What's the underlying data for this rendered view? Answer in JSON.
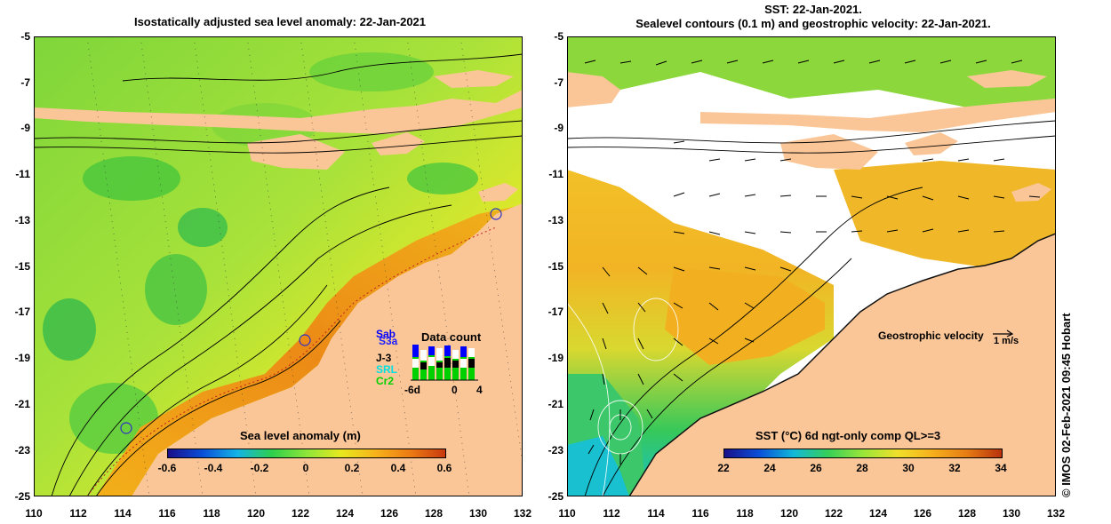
{
  "left_panel": {
    "title": "Isostatically adjusted sea level anomaly: 22-Jan-2021",
    "y_ticks": [
      "-5",
      "-7",
      "-9",
      "-11",
      "-13",
      "-15",
      "-17",
      "-19",
      "-21",
      "-23",
      "-25"
    ],
    "x_ticks": [
      "110",
      "112",
      "114",
      "116",
      "118",
      "120",
      "122",
      "124",
      "126",
      "128",
      "130",
      "132"
    ],
    "colorbar": {
      "title": "Sea level anomaly (m)",
      "ticks": [
        "-0.6",
        "-0.4",
        "-0.2",
        "0",
        "0.2",
        "0.4",
        "0.6"
      ]
    },
    "data_count": {
      "title": "Data count",
      "satellites": [
        "Sab",
        "S3a",
        "J-3",
        "SRL",
        "Cr2"
      ],
      "axis_labels": [
        "-6d",
        "0",
        "4"
      ],
      "sat_colors": [
        "#0000ff",
        "#2020ff",
        "#000000",
        "#00e0e0",
        "#00d000"
      ]
    }
  },
  "right_panel": {
    "title_line1": "SST: 22-Jan-2021.",
    "title_line2": "Sealevel contours (0.1 m) and geostrophic velocity: 22-Jan-2021.",
    "y_ticks": [
      "-5",
      "-7",
      "-9",
      "-11",
      "-13",
      "-15",
      "-17",
      "-19",
      "-21",
      "-23",
      "-25"
    ],
    "x_ticks": [
      "110",
      "112",
      "114",
      "116",
      "118",
      "120",
      "122",
      "124",
      "126",
      "128",
      "130",
      "132"
    ],
    "velocity_legend": "Geostrophic velocity",
    "velocity_unit": "1 m/s",
    "colorbar": {
      "title": "SST (°C) 6d ngt-only comp QL>=3",
      "ticks": [
        "22",
        "24",
        "26",
        "28",
        "30",
        "32",
        "34"
      ]
    }
  },
  "credit": "© IMOS 02-Feb-2021 09:45 Hobart",
  "colors": {
    "land": "#fbc697",
    "sla_scale": [
      "#1a0f8a",
      "#0a4fd8",
      "#14b4e6",
      "#2ecf4c",
      "#8ee63a",
      "#e8e81e",
      "#f7b21a",
      "#ec7a14",
      "#c83a0e"
    ],
    "sst_scale": [
      "#1a0f8a",
      "#0a4fd8",
      "#12b8d8",
      "#36cf58",
      "#9ae63a",
      "#f0e02a",
      "#f6b01c",
      "#e67c14",
      "#b8320c"
    ]
  }
}
